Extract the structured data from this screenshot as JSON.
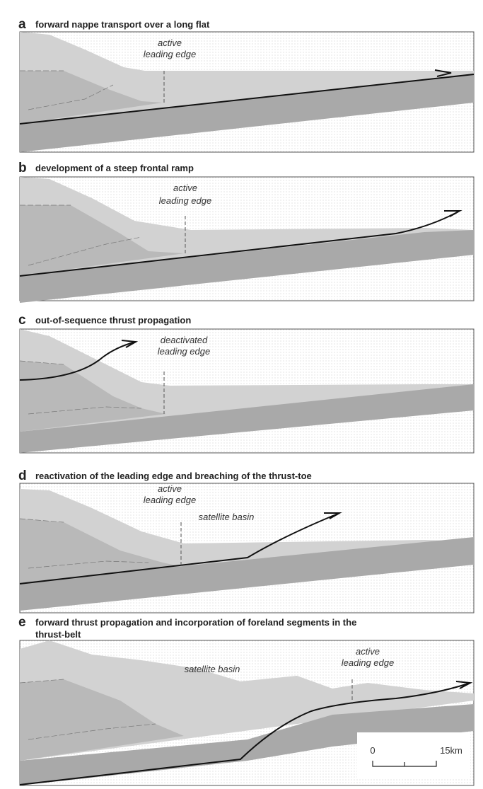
{
  "panels": [
    {
      "letter": "a",
      "title": "forward nappe transport over a long flat",
      "labels": [
        "active",
        "leading edge"
      ]
    },
    {
      "letter": "b",
      "title": "development of a steep frontal ramp",
      "labels": [
        "active",
        "leading edge"
      ]
    },
    {
      "letter": "c",
      "title": "out-of-sequence thrust propagation",
      "labels": [
        "deactivated",
        "leading edge"
      ]
    },
    {
      "letter": "d",
      "title": "reactivation of the leading edge and breaching of the thrust-toe",
      "labels": [
        "active",
        "leading edge",
        "satellite basin"
      ]
    },
    {
      "letter": "e",
      "title": [
        "forward thrust propagation and incorporation of foreland segments in the",
        "thrust-belt"
      ],
      "labels": [
        "active",
        "leading edge",
        "satellite basin"
      ]
    }
  ],
  "scale_bar": {
    "start": "0",
    "end": "15km"
  }
}
